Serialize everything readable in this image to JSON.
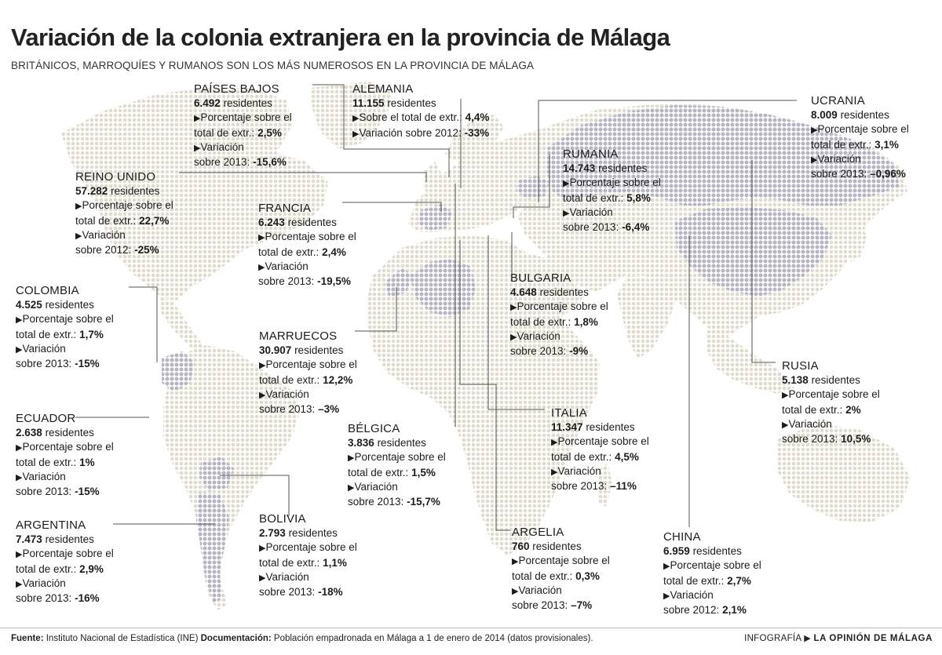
{
  "title": "Variación de la colonia extranjera en la provincia de Málaga",
  "subtitle": "BRITÁNICOS, MARROQUÍES Y RUMANOS SON LOS MÁS NUMEROSOS EN LA PROVINCIA DE MÁLAGA",
  "labels": {
    "residentes": "residentes",
    "porcentaje_l1": "Porcentaje sobre el",
    "porcentaje_l2": "total de extr.:",
    "porcentaje_one_line": "Sobre el total de extr.:",
    "variacion": "Variación",
    "variacion_one_line": "Variación sobre 2012:",
    "sobre_2013": "sobre 2013:",
    "sobre_2012": "sobre 2012:"
  },
  "countries": {
    "paises_bajos": {
      "name": "PAÍSES BAJOS",
      "residents": "6.492",
      "pct": "2,5%",
      "var": "-15,6%"
    },
    "alemania": {
      "name": "ALEMANIA",
      "residents": "11.155",
      "pct": "4,4%",
      "var": "-33%"
    },
    "ucrania": {
      "name": "UCRANIA",
      "residents": "8.009",
      "pct": "3,1%",
      "var": "–0,96%"
    },
    "rumania": {
      "name": "RUMANIA",
      "residents": "14.743",
      "pct": "5,8%",
      "var": "-6,4%"
    },
    "reino_unido": {
      "name": "REINO UNIDO",
      "residents": "57.282",
      "pct": "22,7%",
      "var": "-25%"
    },
    "francia": {
      "name": "FRANCIA",
      "residents": "6.243",
      "pct": "2,4%",
      "var": "-19,5%"
    },
    "colombia": {
      "name": "COLOMBIA",
      "residents": "4.525",
      "pct": "1,7%",
      "var": "-15%"
    },
    "bulgaria": {
      "name": "BULGARIA",
      "residents": "4.648",
      "pct": "1,8%",
      "var": "-9%"
    },
    "marruecos": {
      "name": "MARRUECOS",
      "residents": "30.907",
      "pct": "12,2%",
      "var": "–3%"
    },
    "rusia": {
      "name": "RUSIA",
      "residents": "5.138",
      "pct": "2%",
      "var": "10,5%"
    },
    "ecuador": {
      "name": "ECUADOR",
      "residents": "2.638",
      "pct": "1%",
      "var": "-15%"
    },
    "belgica": {
      "name": "BÉLGICA",
      "residents": "3.836",
      "pct": "1,5%",
      "var": "-15,7%"
    },
    "italia": {
      "name": "ITALIA",
      "residents": "11.347",
      "pct": "4,5%",
      "var": "–11%"
    },
    "argentina": {
      "name": "ARGENTINA",
      "residents": "7.473",
      "pct": "2,9%",
      "var": "-16%"
    },
    "bolivia": {
      "name": "BOLIVIA",
      "residents": "2.793",
      "pct": "1,1%",
      "var": "-18%"
    },
    "argelia": {
      "name": "ARGELIA",
      "residents": "760",
      "pct": "0,3%",
      "var": "–7%"
    },
    "china": {
      "name": "CHINA",
      "residents": "6.959",
      "pct": "2,7%",
      "var": "2,1%"
    }
  },
  "footer": {
    "source_label": "Fuente:",
    "source_text": "Instituto Nacional de Estadística (INE)",
    "doc_label": "Documentación:",
    "doc_text": "Población empadronada en Málaga a 1 de enero de 2014 (datos provisionales).",
    "credit_prefix": "INFOGRAFÍA",
    "credit_brand": "LA OPINIÓN DE MÁLAGA"
  },
  "colors": {
    "land": "#e2ddd0",
    "highlight": "#bdbac9",
    "leader": "#555555"
  }
}
